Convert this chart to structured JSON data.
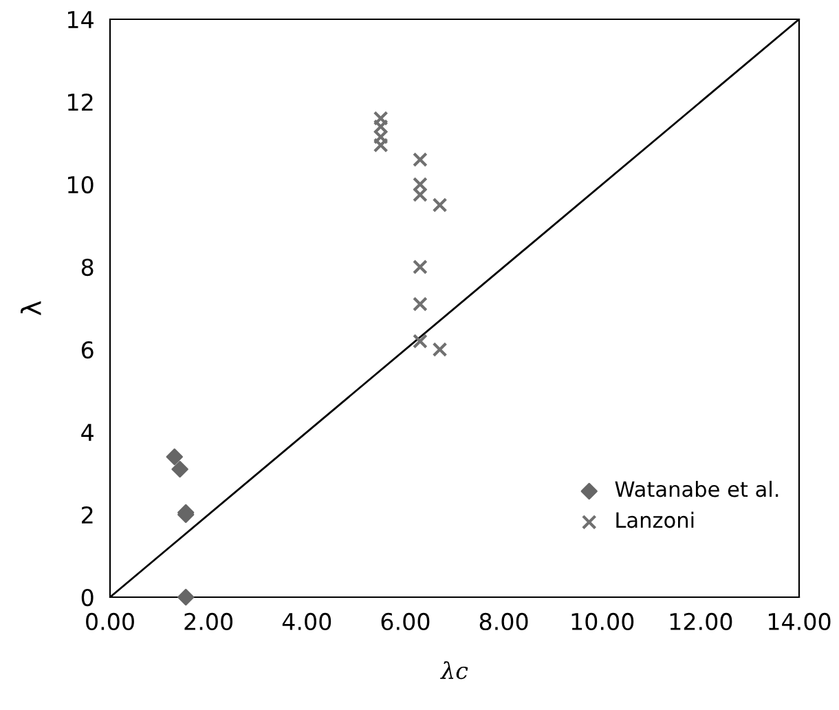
{
  "chart_data": {
    "type": "scatter",
    "xlabel": "λc",
    "ylabel": "λ",
    "xlim": [
      0,
      14
    ],
    "ylim": [
      0,
      14
    ],
    "xticks": [
      {
        "value": 0,
        "label": "0.00"
      },
      {
        "value": 2,
        "label": "2.00"
      },
      {
        "value": 4,
        "label": "4.00"
      },
      {
        "value": 6,
        "label": "6.00"
      },
      {
        "value": 8,
        "label": "8.00"
      },
      {
        "value": 10,
        "label": "10.00"
      },
      {
        "value": 12,
        "label": "12.00"
      },
      {
        "value": 14,
        "label": "14.00"
      }
    ],
    "yticks": [
      0,
      2,
      4,
      6,
      8,
      10,
      12,
      14
    ],
    "grid": false,
    "legend": "bottom right",
    "series": [
      {
        "name": "Watanabe et al.",
        "color": "#666666",
        "marker": "diamond",
        "x": [
          1.31,
          1.42,
          1.54,
          1.54,
          1.54
        ],
        "values": [
          3.4,
          3.1,
          2.05,
          2.0,
          0
        ]
      },
      {
        "name": "Lanzoni",
        "color": "#707070",
        "marker": "cross",
        "x": [
          5.5,
          5.5,
          5.5,
          5.5,
          6.3,
          6.3,
          6.3,
          6.3,
          6.3,
          6.3,
          6.7,
          6.7
        ],
        "values": [
          11.6,
          11.4,
          11.15,
          10.95,
          10.6,
          10.0,
          9.75,
          8.0,
          7.1,
          6.2,
          9.5,
          6.0
        ]
      },
      {
        "type": "line",
        "color": "#000000",
        "x": [
          0,
          14
        ],
        "values": [
          0,
          14
        ]
      }
    ]
  }
}
